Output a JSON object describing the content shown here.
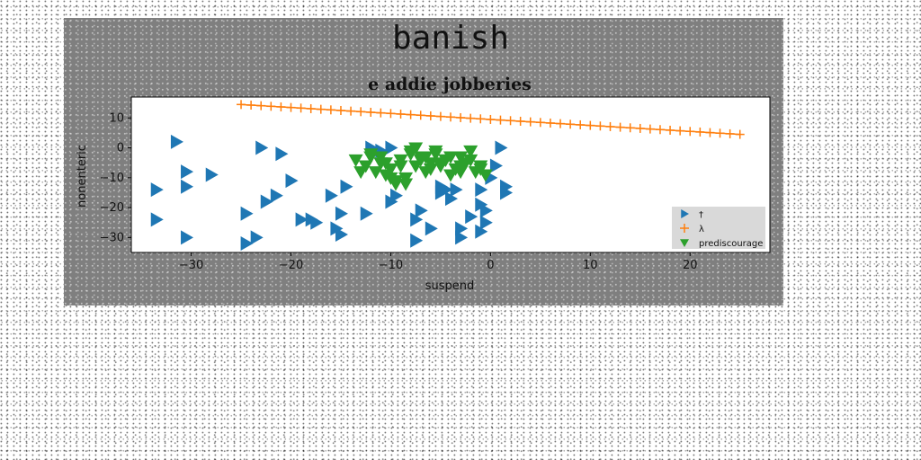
{
  "figure": {
    "suptitle": "banish",
    "background": "#7f7f7f"
  },
  "chart_data": {
    "type": "scatter",
    "title": "e addie jobberies",
    "xlabel": "suspend",
    "ylabel": "nonenteric",
    "xlim": [
      -36,
      28
    ],
    "ylim": [
      -35,
      17
    ],
    "xticks": [
      -30,
      -20,
      -10,
      0,
      10,
      20
    ],
    "xtick_labels": [
      "−30",
      "−20",
      "−10",
      "0",
      "10",
      "20"
    ],
    "yticks": [
      -30,
      -20,
      -10,
      0,
      10
    ],
    "ytick_labels": [
      "−30",
      "−20",
      "−10",
      "0",
      "10"
    ],
    "grid": false,
    "legend_placement": "lower-right",
    "series": [
      {
        "name": "†",
        "marker": "triangle-right",
        "color": "#1f77b4",
        "x": [
          -31.5,
          -33.5,
          -33.5,
          -30.5,
          -30.5,
          -30.5,
          -28,
          -23,
          -21,
          -24.5,
          -22.5,
          -21.5,
          -20,
          -24.5,
          -23.5,
          -19,
          -18,
          -17.5,
          -15.5,
          -15,
          -15,
          -16,
          -14.5,
          -12.5,
          -12,
          -11,
          -10,
          -10,
          -9.5,
          -7.5,
          -7,
          -7.5,
          -6,
          -5,
          -4,
          -4.5,
          -5,
          -3.5,
          -3,
          -2,
          -1,
          -1,
          0,
          0.5,
          1.5,
          1.5,
          -0.5,
          1,
          -0.5,
          -1,
          -3
        ],
        "y": [
          2,
          -14,
          -24,
          -8,
          -13,
          -30,
          -9,
          0,
          -2,
          -22,
          -18,
          -16,
          -11,
          -32,
          -30,
          -24,
          -24,
          -25,
          -27,
          -29,
          -22,
          -16,
          -13,
          -22,
          0,
          -1,
          0,
          -18,
          -16,
          -31,
          -21,
          -24,
          -27,
          -15,
          -17,
          -14,
          -13,
          -14,
          -27,
          -23,
          -19,
          -14,
          -10,
          -6,
          -13,
          -15,
          -21,
          0,
          -25,
          -28,
          -30
        ]
      },
      {
        "name": "λ",
        "marker": "plus",
        "color": "#ff7f0e",
        "x": [
          -25,
          -24,
          -23,
          -22,
          -21,
          -20,
          -19,
          -18,
          -17,
          -16,
          -15,
          -14,
          -13,
          -12,
          -11,
          -10,
          -9,
          -8,
          -7,
          -6,
          -5,
          -4,
          -3,
          -2,
          -1,
          0,
          1,
          2,
          3,
          4,
          5,
          6,
          7,
          8,
          9,
          10,
          11,
          12,
          13,
          14,
          15,
          16,
          17,
          18,
          19,
          20,
          21,
          22,
          23,
          24,
          25
        ],
        "y": [
          14.5,
          14.3,
          14.1,
          13.9,
          13.7,
          13.5,
          13.3,
          13.1,
          12.9,
          12.7,
          12.5,
          12.3,
          12.1,
          11.9,
          11.7,
          11.5,
          11.3,
          11.1,
          10.9,
          10.7,
          10.5,
          10.3,
          10.1,
          9.9,
          9.7,
          9.5,
          9.3,
          9.1,
          8.9,
          8.7,
          8.5,
          8.3,
          8.1,
          7.9,
          7.7,
          7.5,
          7.3,
          7.1,
          6.9,
          6.7,
          6.5,
          6.3,
          6.1,
          5.9,
          5.7,
          5.5,
          5.3,
          5.1,
          4.9,
          4.7,
          4.5
        ]
      },
      {
        "name": "prediscourage",
        "marker": "triangle-down",
        "color": "#2ca02c",
        "x": [
          -13.5,
          -12.5,
          -12,
          -11.5,
          -11,
          -10.5,
          -10,
          -9.5,
          -9,
          -8.5,
          -8,
          -7.5,
          -7,
          -6.5,
          -6,
          -5.5,
          -5,
          -4.5,
          -4,
          -3.5,
          -3,
          -2.5,
          -2,
          -1.5,
          -1,
          -0.5,
          -13,
          -12,
          -11,
          -10,
          -9,
          -8,
          -7,
          -6,
          -5,
          -4,
          -3,
          -2,
          -1,
          -8.5,
          -7.5,
          -6.5,
          -5.5,
          -4.5,
          -9.5,
          -10.5,
          -3
        ],
        "y": [
          -4,
          -6,
          -2,
          -8,
          -3,
          -5,
          -7,
          -11,
          -4,
          -10,
          -1,
          -6,
          -3,
          -8,
          -5,
          -2,
          -6,
          -4,
          -9,
          -7,
          -3,
          -5,
          -1,
          -8,
          -6,
          -9,
          -8,
          -3,
          -5,
          -10,
          -6,
          -2,
          -4,
          -7,
          -5,
          -3,
          -6,
          -4,
          -7,
          -12,
          0,
          -3,
          -1,
          -4,
          -12,
          -9,
          -8
        ]
      }
    ]
  }
}
